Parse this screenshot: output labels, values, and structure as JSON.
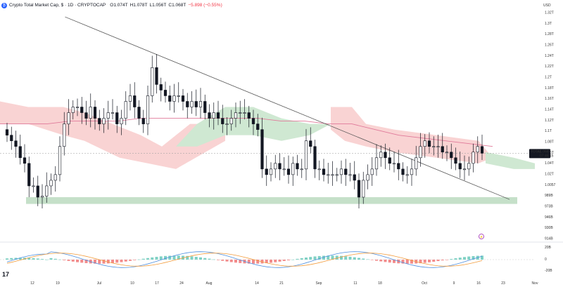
{
  "header": {
    "logo_letter": "₿",
    "symbol": "Crypto Total Market Cap, $ · 1D · CRYPTOCAP",
    "open": "O1.074T",
    "high": "H1.078T",
    "low": "L1.056T",
    "close": "C1.068T",
    "change": "−5.898 (−0.55%)"
  },
  "price_axis": {
    "currency": "USD",
    "ticks": [
      "1.32T",
      "1.3T",
      "1.28T",
      "1.26T",
      "1.24T",
      "1.22T",
      "1.2T",
      "1.18T",
      "1.16T",
      "1.14T",
      "1.12T",
      "1.1T",
      "1.08T",
      "1.06T",
      "1.04T",
      "1.02T",
      "1.0057",
      "989B",
      "973B",
      "946B",
      "930B",
      "914B"
    ]
  },
  "last_price": {
    "value": "1.068T",
    "countdown": "07:46:15",
    "ticker": "TOTAL"
  },
  "macd_axis": {
    "ticks": [
      "20B",
      "0",
      "-20B"
    ]
  },
  "time_axis": {
    "ticks": [
      "12",
      "19",
      "Jul",
      "10",
      "17",
      "24",
      "Aug",
      "14",
      "21",
      "Sep",
      "11",
      "18",
      "Oct",
      "9",
      "16",
      "23",
      "Nov"
    ]
  },
  "branding": {
    "logo": "17"
  },
  "colors": {
    "up": "#131722",
    "down": "#131722",
    "ma": "#e07a9a",
    "cloud_bull": "#cfe8d2",
    "cloud_bear": "#f9d3d3",
    "support": "#c5e0c9",
    "trend": "#555555",
    "macd_line": "#4d8fe0",
    "signal_line": "#f39c3c",
    "hist_up": "#7fd1c4",
    "hist_down": "#f28b8b"
  },
  "chart_data": {
    "type": "candlestick",
    "title": "Crypto Total Market Cap, $ · 1D · CRYPTOCAP",
    "x_range": [
      "2023-06-06",
      "2023-11-01"
    ],
    "y_range_T": [
      0.914,
      1.33
    ],
    "candles_close_T": [
      1.1,
      1.09,
      1.08,
      1.06,
      1.05,
      1.01,
      1.01,
      0.99,
      0.992,
      1.01,
      1.02,
      1.03,
      1.08,
      1.12,
      1.14,
      1.15,
      1.15,
      1.14,
      1.13,
      1.15,
      1.13,
      1.12,
      1.13,
      1.14,
      1.14,
      1.12,
      1.13,
      1.16,
      1.17,
      1.15,
      1.13,
      1.12,
      1.17,
      1.22,
      1.19,
      1.18,
      1.17,
      1.16,
      1.17,
      1.17,
      1.16,
      1.15,
      1.16,
      1.15,
      1.16,
      1.14,
      1.13,
      1.14,
      1.13,
      1.12,
      1.12,
      1.13,
      1.14,
      1.14,
      1.14,
      1.13,
      1.12,
      1.11,
      1.04,
      1.03,
      1.04,
      1.05,
      1.04,
      1.04,
      1.03,
      1.05,
      1.04,
      1.04,
      1.09,
      1.08,
      1.04,
      1.04,
      1.03,
      1.03,
      1.03,
      1.03,
      1.04,
      1.03,
      1.03,
      1.02,
      0.99,
      1.02,
      1.03,
      1.04,
      1.06,
      1.07,
      1.06,
      1.05,
      1.05,
      1.04,
      1.03,
      1.03,
      1.04,
      1.06,
      1.08,
      1.09,
      1.08,
      1.08,
      1.08,
      1.07,
      1.07,
      1.06,
      1.05,
      1.04,
      1.04,
      1.05,
      1.07,
      1.08,
      1.068
    ],
    "moving_average_T": [
      1.12,
      1.12,
      1.12,
      1.125,
      1.125,
      1.125,
      1.13,
      1.13,
      1.13,
      1.13,
      1.13,
      1.13,
      1.125,
      1.125,
      1.12,
      1.12,
      1.11,
      1.1,
      1.095,
      1.09,
      1.085,
      1.08
    ],
    "trendline_T": [
      [
        "2023-06-24",
        1.31
      ],
      [
        "2023-10-25",
        0.986
      ]
    ],
    "support_zone_T": [
      0.978,
      0.99
    ],
    "macd": {
      "y_range_B": [
        -30,
        30
      ],
      "ticks": [
        "20B",
        "0",
        "-20B"
      ]
    }
  }
}
